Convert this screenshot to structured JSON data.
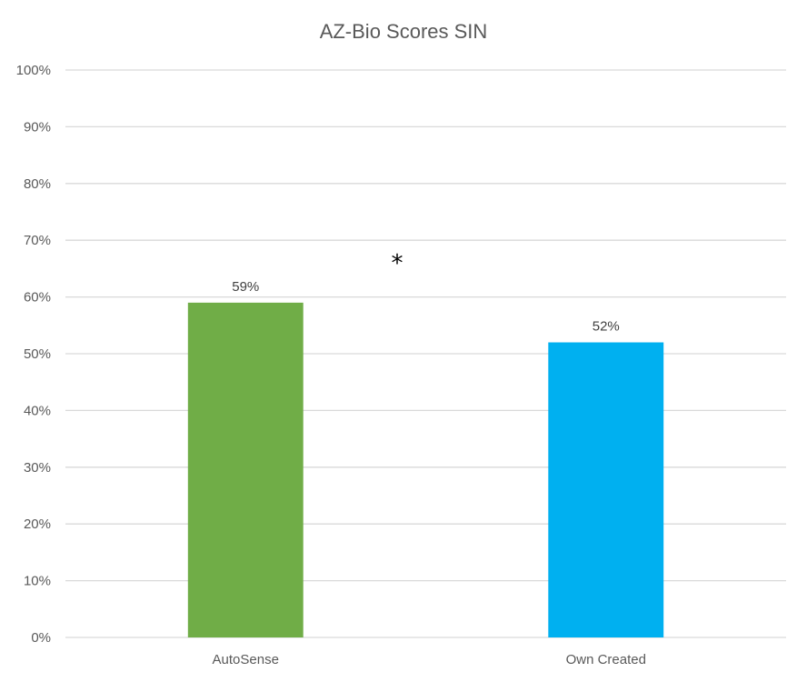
{
  "chart_data": {
    "type": "bar",
    "title": "AZ-Bio Scores SIN",
    "categories": [
      "AutoSense",
      "Own Created"
    ],
    "values": [
      0.59,
      0.52
    ],
    "data_labels": [
      "59%",
      "52%"
    ],
    "colors": [
      "#70ad47",
      "#00b0f0"
    ],
    "ylim": [
      0,
      1
    ],
    "yticks": [
      0,
      0.1,
      0.2,
      0.3,
      0.4,
      0.5,
      0.6,
      0.7,
      0.8,
      0.9,
      1.0
    ],
    "ytick_labels": [
      "0%",
      "10%",
      "20%",
      "30%",
      "40%",
      "50%",
      "60%",
      "70%",
      "80%",
      "90%",
      "100%"
    ],
    "grid": true,
    "annotation": "*",
    "xlabel": "",
    "ylabel": ""
  }
}
